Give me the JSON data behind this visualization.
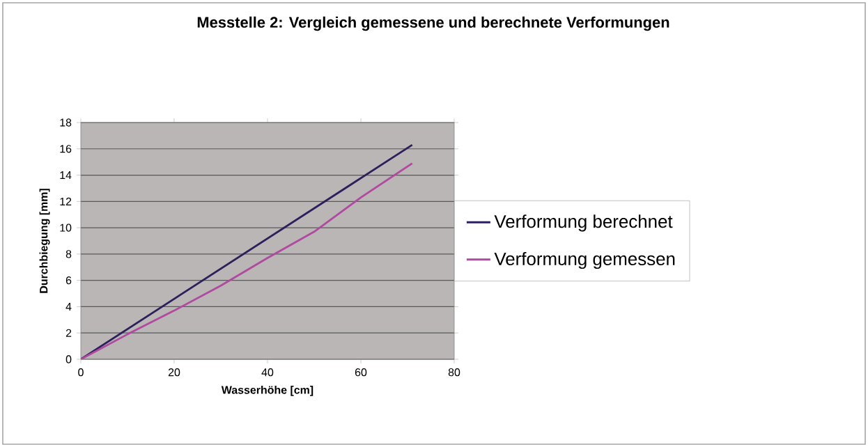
{
  "chart_data": {
    "type": "line",
    "title": "Messtelle 2: Vergleich gemessene und berechnete Verformungen",
    "xlabel": "Wasserhöhe [cm]",
    "ylabel": "Durchbiegung [mm]",
    "xlim": [
      0,
      80
    ],
    "xticks": [
      0,
      20,
      40,
      60,
      80
    ],
    "ylim": [
      0,
      18
    ],
    "yticks": [
      0,
      2,
      4,
      6,
      8,
      10,
      12,
      14,
      16,
      18
    ],
    "grid": "y",
    "legend": "right",
    "marker": "none",
    "line_style": "solid",
    "series": [
      {
        "name": "Verformung berechnet",
        "color": "#2b1f5c",
        "x": [
          0,
          71
        ],
        "values": [
          0,
          16.3
        ]
      },
      {
        "name": "Verformung gemessen",
        "color": "#b04aa0",
        "x": [
          0,
          10,
          20,
          30,
          40,
          50,
          60,
          71
        ],
        "values": [
          0,
          1.9,
          3.7,
          5.6,
          7.7,
          9.7,
          12.3,
          14.9
        ]
      }
    ]
  }
}
